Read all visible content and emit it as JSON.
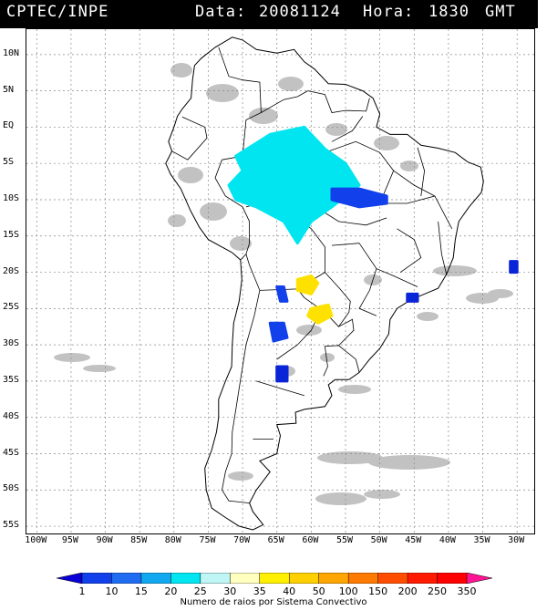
{
  "header": {
    "source": "CPTEC/INPE",
    "data_label": "Data:",
    "data_value": "20081124",
    "hora_label": "Hora:",
    "hora_value": "1830",
    "tz": "GMT"
  },
  "map": {
    "lat_labels": [
      "10N",
      "5N",
      "EQ",
      "5S",
      "10S",
      "15S",
      "20S",
      "25S",
      "30S",
      "35S",
      "40S",
      "45S",
      "50S",
      "55S"
    ],
    "lat_values": [
      10,
      5,
      0,
      -5,
      -10,
      -15,
      -20,
      -25,
      -30,
      -35,
      -40,
      -45,
      -50,
      -55
    ],
    "lon_labels": [
      "100W",
      "95W",
      "90W",
      "85W",
      "80W",
      "75W",
      "70W",
      "65W",
      "60W",
      "55W",
      "50W",
      "45W",
      "40W",
      "35W",
      "30W"
    ],
    "lon_values": [
      -100,
      -95,
      -90,
      -85,
      -80,
      -75,
      -70,
      -65,
      -60,
      -55,
      -50,
      -45,
      -40,
      -35,
      -30
    ],
    "lat_range": [
      -56,
      13.5
    ],
    "lon_range": [
      -101.5,
      -27.5
    ],
    "grid": "dashed",
    "lightning_clusters": [
      {
        "name": "amazon-cluster",
        "class": "20-25",
        "color": "#00e5f0",
        "points": [
          [
            -71,
            -4
          ],
          [
            -66,
            -1
          ],
          [
            -61,
            0
          ],
          [
            -58,
            -3
          ],
          [
            -55,
            -5
          ],
          [
            -53,
            -8
          ],
          [
            -57,
            -11
          ],
          [
            -60,
            -13
          ],
          [
            -62,
            -16
          ],
          [
            -64,
            -13
          ],
          [
            -68,
            -11
          ],
          [
            -71,
            -10
          ],
          [
            -72,
            -8
          ],
          [
            -70,
            -6
          ]
        ]
      },
      {
        "name": "central-brazil-cluster",
        "class": "10-15",
        "color": "#1240ea",
        "points": [
          [
            -57,
            -8.5
          ],
          [
            -53,
            -8.5
          ],
          [
            -49,
            -9.5
          ],
          [
            -49,
            -10.5
          ],
          [
            -53,
            -11
          ],
          [
            -57,
            -10
          ]
        ]
      },
      {
        "name": "paraguay-cluster-north",
        "class": "40-50",
        "color": "#ffe100",
        "points": [
          [
            -62,
            -21
          ],
          [
            -60,
            -20.5
          ],
          [
            -59,
            -21.5
          ],
          [
            -60,
            -23
          ],
          [
            -62,
            -22.5
          ]
        ]
      },
      {
        "name": "paraguay-cluster-south",
        "class": "40-50",
        "color": "#ffe100",
        "points": [
          [
            -60,
            -25
          ],
          [
            -57.5,
            -24.5
          ],
          [
            -57,
            -26
          ],
          [
            -59,
            -27
          ],
          [
            -60.5,
            -26
          ]
        ]
      },
      {
        "name": "north-argentina-cluster",
        "class": "10-15",
        "color": "#1240ea",
        "points": [
          [
            -65,
            -22
          ],
          [
            -64,
            -22
          ],
          [
            -63.5,
            -24
          ],
          [
            -64.5,
            -24
          ]
        ]
      },
      {
        "name": "chaco-cluster",
        "class": "10-15",
        "color": "#1240ea",
        "points": [
          [
            -66,
            -27
          ],
          [
            -64,
            -27
          ],
          [
            -63.5,
            -29
          ],
          [
            -65.5,
            -29.5
          ]
        ]
      },
      {
        "name": "pampa-cluster",
        "class": "1-10",
        "color": "#0a24d8",
        "points": [
          [
            -65,
            -33
          ],
          [
            -63.5,
            -33
          ],
          [
            -63.5,
            -35
          ],
          [
            -65,
            -35
          ]
        ]
      },
      {
        "name": "atlantic-cluster",
        "class": "1-10",
        "color": "#0a24d8",
        "points": [
          [
            -31,
            -18.5
          ],
          [
            -30,
            -18.5
          ],
          [
            -30,
            -20
          ],
          [
            -31,
            -20
          ]
        ]
      },
      {
        "name": "sao-paulo-cluster",
        "class": "1-10",
        "color": "#0a24d8",
        "points": [
          [
            -46,
            -23
          ],
          [
            -44.5,
            -23
          ],
          [
            -44.5,
            -24
          ],
          [
            -46,
            -24
          ]
        ]
      }
    ]
  },
  "colorbar": {
    "ticks": [
      "1",
      "10",
      "15",
      "20",
      "25",
      "30",
      "35",
      "40",
      "50",
      "100",
      "150",
      "200",
      "250",
      "350"
    ],
    "colors": [
      "#0a00d8",
      "#1240ea",
      "#1f6cf0",
      "#12a8f0",
      "#00e5f0",
      "#bff5f5",
      "#ffffc0",
      "#fff000",
      "#ffd000",
      "#ffa600",
      "#ff7a00",
      "#ff4d00",
      "#ff1a00",
      "#ff0000",
      "#ff1493"
    ],
    "caption": "Numero de raios por Sistema Convectivo"
  }
}
